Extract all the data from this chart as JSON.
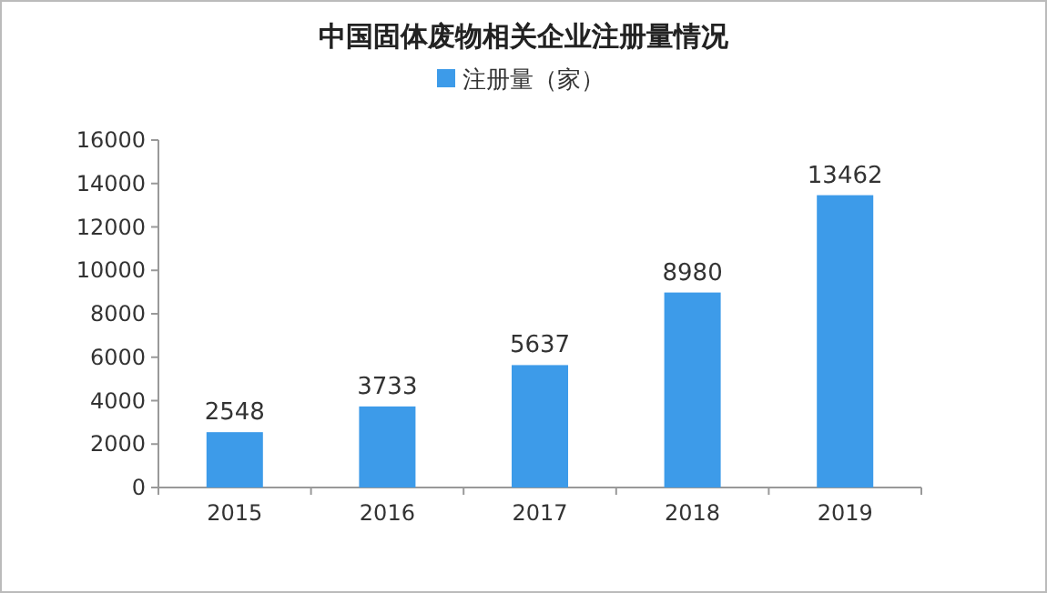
{
  "chart_data": {
    "type": "bar",
    "title": "中国固体废物相关企业注册量情况",
    "categories": [
      "2015",
      "2016",
      "2017",
      "2018",
      "2019"
    ],
    "series": [
      {
        "name": "注册量（家）",
        "color": "#3d9be9",
        "values": [
          2548,
          3733,
          5637,
          8980,
          13462
        ]
      }
    ],
    "ylim": [
      0,
      16000
    ],
    "yticks": [
      0,
      2000,
      4000,
      6000,
      8000,
      10000,
      12000,
      14000,
      16000
    ],
    "data_labels": true,
    "legend": "top",
    "grid": false
  }
}
